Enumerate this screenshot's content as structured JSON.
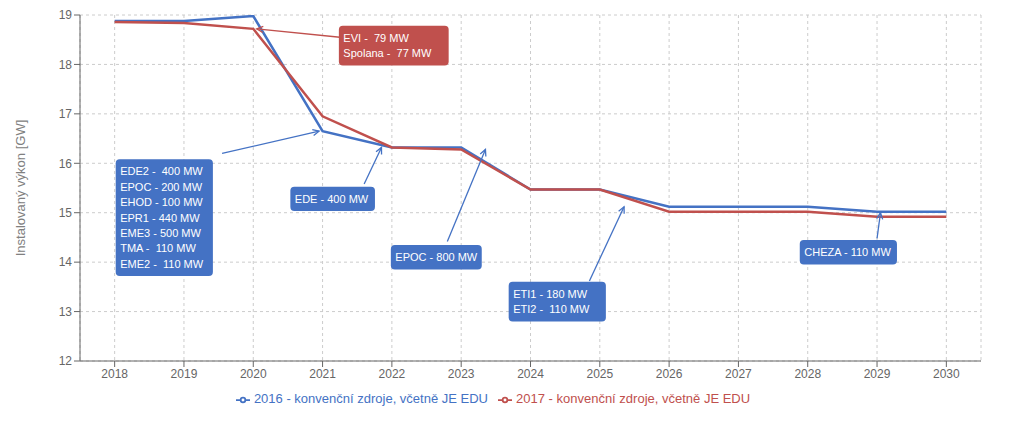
{
  "chart_data": {
    "type": "line",
    "x": [
      2018,
      2019,
      2020,
      2021,
      2022,
      2023,
      2024,
      2025,
      2026,
      2027,
      2028,
      2029,
      2030
    ],
    "series": [
      {
        "name": "2016 - konvenční zdroje, včetně JE EDU",
        "color": "#4472C4",
        "values": [
          18.88,
          18.88,
          18.98,
          16.65,
          16.32,
          16.32,
          15.47,
          15.47,
          15.12,
          15.12,
          15.12,
          15.02,
          15.02
        ]
      },
      {
        "name": "2017 - konvenční zdroje, včetně JE EDU",
        "color": "#C0504D",
        "values": [
          18.86,
          18.84,
          18.72,
          16.95,
          16.32,
          16.28,
          15.47,
          15.47,
          15.02,
          15.02,
          15.02,
          14.92,
          14.92
        ]
      }
    ],
    "ylabel": "Instalovaný výkon [GW]",
    "xlim": [
      2017.5,
      2030.5
    ],
    "xticks": [
      2018,
      2019,
      2020,
      2021,
      2022,
      2023,
      2024,
      2025,
      2026,
      2027,
      2028,
      2029,
      2030
    ],
    "ylim": [
      12,
      19
    ],
    "yticks": [
      12,
      13,
      14,
      15,
      16,
      17,
      18,
      19
    ],
    "grid": true,
    "legend": "bottom",
    "annotations": [
      {
        "text": "EDE2 -  400 MW\nEPOC - 200 MW\nEHOD - 100 MW\nEPR1 - 440 MW\nEME3 - 500 MW\nTMA -  110 MW\nEME2 -  110 MW",
        "color": "#4472C4"
      },
      {
        "text": "EVI -  79 MW\nSpolana -  77 MW",
        "color": "#C0504D"
      },
      {
        "text": "EDE - 400 MW",
        "color": "#4472C4"
      },
      {
        "text": "EPOC - 800 MW",
        "color": "#4472C4"
      },
      {
        "text": "ETI1 - 180 MW\nETI2 -  110 MW",
        "color": "#4472C4"
      },
      {
        "text": "CHEZA - 110 MW",
        "color": "#4472C4"
      }
    ]
  }
}
